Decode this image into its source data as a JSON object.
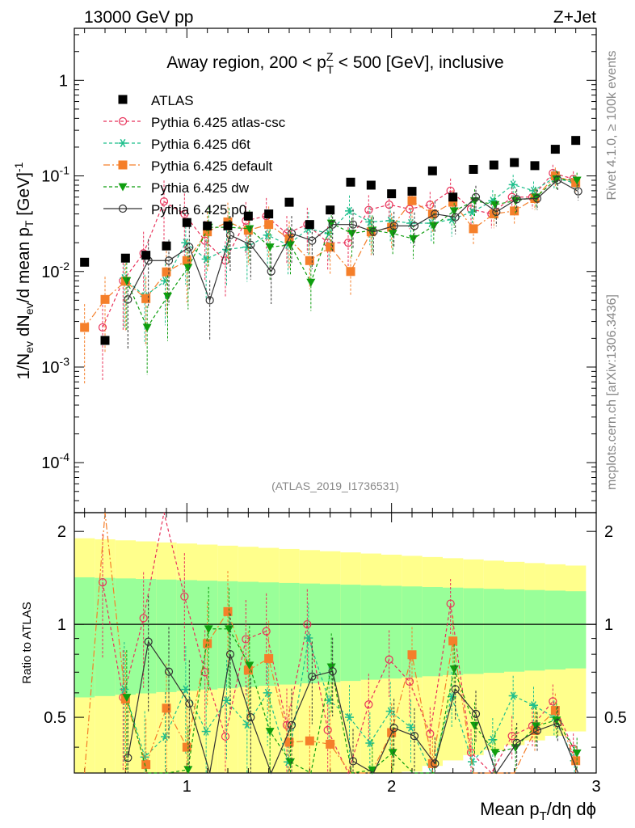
{
  "header": {
    "left": "13000 GeV pp",
    "right": "Z+Jet"
  },
  "side": {
    "rivet": "Rivet 4.1.0, ≥ 100k events",
    "mcplots": "mcplots.cern.ch [arXiv:1306.3436]"
  },
  "chart_data": {
    "type": "scatter",
    "title": "Away region, 200 < p_T^Z < 500 [GeV], inclusive",
    "analysis_id": "(ATLAS_2019_I1736531)",
    "xlabel": "Mean p_T/dη dϕ",
    "ylabel": "1/N_ev dN_ev/d mean p_T [GeV]^-1",
    "ratio_ylabel": "Ratio to ATLAS",
    "xlim": [
      0.45,
      3.0
    ],
    "ylim": [
      3e-05,
      3.5
    ],
    "ratio_ylim": [
      0.33,
      2.3
    ],
    "x_ticks": [
      "1",
      "2",
      "3"
    ],
    "y_ticks": [
      "10^-4",
      "10^-3",
      "10^-2",
      "10^-1",
      "1"
    ],
    "ratio_ticks": [
      "0.5",
      "1",
      "2"
    ],
    "x": [
      0.5,
      0.6,
      0.7,
      0.8,
      0.9,
      1.0,
      1.1,
      1.2,
      1.3,
      1.4,
      1.5,
      1.6,
      1.7,
      1.8,
      1.9,
      2.0,
      2.1,
      2.2,
      2.3,
      2.4,
      2.5,
      2.6,
      2.7,
      2.8,
      2.9
    ],
    "series": [
      {
        "name": "ATLAS",
        "color": "#000000",
        "marker": "square",
        "values": [
          0.0125,
          0.0019,
          0.0138,
          0.0148,
          0.0185,
          0.0325,
          0.03,
          0.03,
          0.038,
          0.04,
          0.053,
          0.031,
          0.044,
          0.086,
          0.08,
          0.065,
          0.069,
          0.113,
          0.06,
          0.117,
          0.13,
          0.138,
          0.128,
          0.19,
          0.235
        ]
      },
      {
        "name": "Pythia 6.425 atlas-csc",
        "color": "#e8325a",
        "marker": "open-circle",
        "dash": "4,3",
        "values": [
          null,
          0.0026,
          0.008,
          0.0155,
          0.054,
          0.04,
          0.021,
          0.013,
          0.034,
          0.038,
          0.025,
          0.031,
          0.02,
          0.02,
          0.044,
          0.05,
          0.045,
          0.05,
          0.07,
          0.045,
          0.04,
          0.06,
          0.06,
          0.107,
          0.093
        ]
      },
      {
        "name": "Pythia 6.425 d6t",
        "color": "#1fbf8c",
        "marker": "star",
        "dash": "4,3",
        "values": [
          null,
          null,
          0.0085,
          0.0055,
          0.008,
          0.02,
          0.0135,
          0.017,
          0.018,
          0.024,
          0.019,
          0.028,
          0.025,
          0.043,
          0.033,
          0.034,
          0.032,
          0.032,
          0.035,
          0.042,
          0.055,
          0.081,
          0.07,
          0.095,
          0.085
        ]
      },
      {
        "name": "Pythia 6.425 default",
        "color": "#f57f2a",
        "marker": "square",
        "dash": "8,3,2,3",
        "values": [
          0.0026,
          0.0051,
          0.0079,
          0.0052,
          0.0099,
          0.013,
          0.026,
          0.033,
          0.027,
          0.031,
          0.022,
          0.013,
          0.018,
          0.01,
          0.026,
          0.029,
          0.055,
          0.04,
          0.053,
          0.028,
          0.04,
          0.043,
          0.058,
          0.1,
          0.085
        ]
      },
      {
        "name": "Pythia 6.425 dw",
        "color": "#0f9e0f",
        "marker": "triangle-down",
        "dash": "4,3",
        "values": [
          null,
          null,
          0.008,
          0.0026,
          0.0055,
          0.011,
          0.029,
          0.029,
          0.028,
          0.018,
          0.019,
          0.0077,
          0.032,
          0.025,
          0.027,
          0.025,
          0.022,
          0.03,
          0.043,
          0.055,
          0.05,
          0.055,
          0.06,
          0.093,
          0.09
        ]
      },
      {
        "name": "Pythia 6.425 p0",
        "color": "#333333",
        "marker": "open-circle",
        "dash": "",
        "values": [
          null,
          null,
          0.0051,
          0.013,
          0.013,
          0.018,
          0.005,
          0.024,
          0.019,
          0.01,
          0.025,
          0.021,
          0.031,
          0.031,
          0.026,
          0.03,
          0.03,
          0.04,
          0.037,
          0.06,
          0.042,
          0.057,
          0.058,
          0.091,
          0.069
        ]
      }
    ]
  }
}
